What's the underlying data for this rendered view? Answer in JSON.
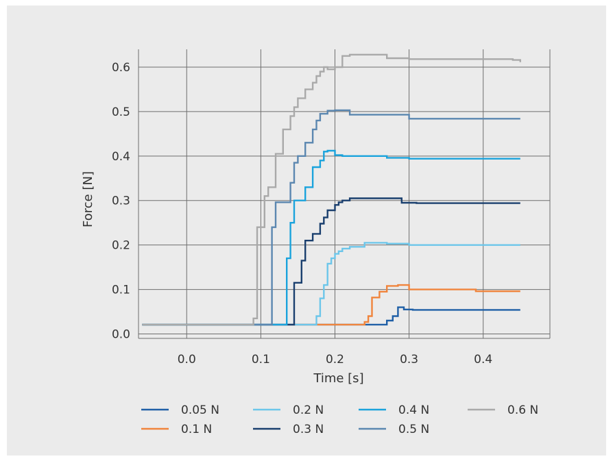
{
  "chart_data": {
    "type": "line",
    "title": "",
    "xlabel": "Time [s]",
    "ylabel": "Force [N]",
    "xlim": [
      -0.065,
      0.49
    ],
    "ylim": [
      -0.01,
      0.64
    ],
    "x_ticks": [
      0.0,
      0.1,
      0.2,
      0.3,
      0.4
    ],
    "x_tick_labels": [
      "0.0",
      "0.1",
      "0.2",
      "0.3",
      "0.4"
    ],
    "y_ticks": [
      0.0,
      0.1,
      0.2,
      0.3,
      0.4,
      0.5,
      0.6
    ],
    "y_tick_labels": [
      "0.0",
      "0.1",
      "0.2",
      "0.3",
      "0.4",
      "0.5",
      "0.6"
    ],
    "grid": true,
    "legend_position": "bottom",
    "step_style": "post",
    "series": [
      {
        "name": "0.05 N",
        "color": "#1f5fa6",
        "x": [
          -0.06,
          0.255,
          0.265,
          0.27,
          0.278,
          0.285,
          0.293,
          0.305,
          0.45
        ],
        "y": [
          0.021,
          0.021,
          0.021,
          0.03,
          0.04,
          0.06,
          0.055,
          0.054,
          0.054
        ]
      },
      {
        "name": "0.1 N",
        "color": "#f0843c",
        "x": [
          -0.06,
          0.23,
          0.24,
          0.245,
          0.25,
          0.26,
          0.27,
          0.285,
          0.3,
          0.32,
          0.37,
          0.39,
          0.45
        ],
        "y": [
          0.021,
          0.021,
          0.027,
          0.04,
          0.082,
          0.095,
          0.108,
          0.11,
          0.1,
          0.1,
          0.1,
          0.096,
          0.096
        ]
      },
      {
        "name": "0.2 N",
        "color": "#6cc6ea",
        "x": [
          -0.06,
          0.17,
          0.175,
          0.18,
          0.185,
          0.19,
          0.195,
          0.2,
          0.205,
          0.21,
          0.22,
          0.24,
          0.27,
          0.3,
          0.45
        ],
        "y": [
          0.021,
          0.021,
          0.04,
          0.08,
          0.11,
          0.158,
          0.17,
          0.18,
          0.186,
          0.192,
          0.196,
          0.205,
          0.203,
          0.2,
          0.2
        ]
      },
      {
        "name": "0.3 N",
        "color": "#1a3f6e",
        "x": [
          -0.06,
          0.14,
          0.145,
          0.15,
          0.155,
          0.16,
          0.17,
          0.18,
          0.185,
          0.19,
          0.2,
          0.205,
          0.21,
          0.22,
          0.26,
          0.29,
          0.31,
          0.45
        ],
        "y": [
          0.021,
          0.021,
          0.115,
          0.115,
          0.165,
          0.21,
          0.225,
          0.248,
          0.262,
          0.278,
          0.29,
          0.296,
          0.3,
          0.305,
          0.305,
          0.295,
          0.294,
          0.294
        ]
      },
      {
        "name": "0.4 N",
        "color": "#1aa3dc",
        "x": [
          -0.06,
          0.13,
          0.135,
          0.14,
          0.145,
          0.15,
          0.16,
          0.17,
          0.18,
          0.185,
          0.19,
          0.2,
          0.21,
          0.24,
          0.27,
          0.3,
          0.45
        ],
        "y": [
          0.021,
          0.021,
          0.17,
          0.25,
          0.3,
          0.3,
          0.33,
          0.375,
          0.39,
          0.41,
          0.412,
          0.402,
          0.4,
          0.4,
          0.396,
          0.394,
          0.394
        ]
      },
      {
        "name": "0.5 N",
        "color": "#5b87b0",
        "x": [
          -0.06,
          0.11,
          0.115,
          0.12,
          0.13,
          0.14,
          0.145,
          0.15,
          0.16,
          0.17,
          0.175,
          0.18,
          0.19,
          0.2,
          0.22,
          0.26,
          0.3,
          0.31,
          0.45
        ],
        "y": [
          0.021,
          0.021,
          0.24,
          0.296,
          0.296,
          0.34,
          0.385,
          0.4,
          0.43,
          0.46,
          0.48,
          0.495,
          0.502,
          0.503,
          0.493,
          0.493,
          0.484,
          0.484,
          0.484
        ]
      },
      {
        "name": "0.6 N",
        "color": "#a9a9a9",
        "x": [
          -0.06,
          0.09,
          0.095,
          0.1,
          0.105,
          0.11,
          0.12,
          0.13,
          0.14,
          0.145,
          0.15,
          0.16,
          0.17,
          0.175,
          0.18,
          0.185,
          0.19,
          0.2,
          0.21,
          0.22,
          0.27,
          0.3,
          0.44,
          0.45
        ],
        "y": [
          0.021,
          0.035,
          0.24,
          0.24,
          0.31,
          0.33,
          0.405,
          0.46,
          0.49,
          0.51,
          0.53,
          0.55,
          0.565,
          0.58,
          0.59,
          0.6,
          0.595,
          0.6,
          0.625,
          0.628,
          0.62,
          0.618,
          0.616,
          0.611
        ]
      }
    ]
  }
}
